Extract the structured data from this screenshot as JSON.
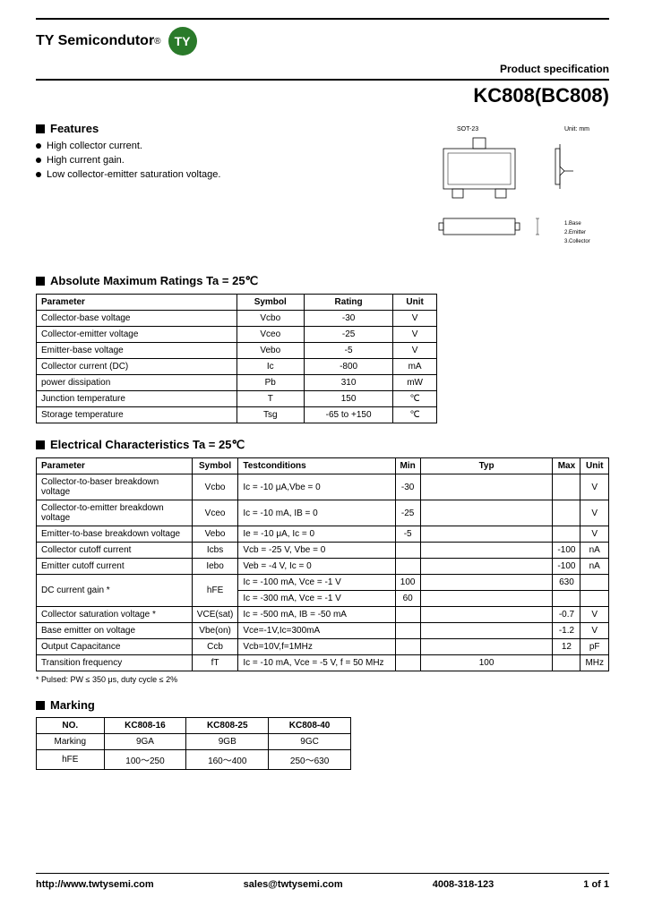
{
  "header": {
    "company": "TY Semicondutor",
    "logo_text": "TY",
    "logo_bg": "#2a7a2a",
    "product_spec": "Product specification",
    "part_number": "KC808(BC808)"
  },
  "features": {
    "title": "Features",
    "items": [
      "High collector current.",
      "High current gain.",
      "Low collector-emitter saturation voltage."
    ]
  },
  "diagram": {
    "label_top": "SOT-23",
    "label_right": "Unit: mm",
    "pin1": "1.Base",
    "pin2": "2.Emitter",
    "pin3": "3.Collector"
  },
  "abs_max": {
    "title": "Absolute Maximum Ratings Ta = 25℃",
    "columns": [
      "Parameter",
      "Symbol",
      "Rating",
      "Unit"
    ],
    "rows": [
      [
        "Collector-base voltage",
        "Vcbo",
        "-30",
        "V"
      ],
      [
        "Collector-emitter voltage",
        "Vceo",
        "-25",
        "V"
      ],
      [
        "Emitter-base voltage",
        "Vebo",
        "-5",
        "V"
      ],
      [
        "Collector current (DC)",
        "Ic",
        "-800",
        "mA"
      ],
      [
        "power dissipation",
        "Pb",
        "310",
        "mW"
      ],
      [
        "Junction temperature",
        "T",
        "150",
        "℃"
      ],
      [
        "Storage temperature",
        "Tsg",
        "-65 to +150",
        "℃"
      ]
    ]
  },
  "elec_char": {
    "title": "Electrical Characteristics Ta = 25℃",
    "columns": [
      "Parameter",
      "Symbol",
      "Testconditions",
      "Min",
      "Typ",
      "Max",
      "Unit"
    ],
    "rows": [
      [
        "Collector-to-baser breakdown voltage",
        "Vcbo",
        "Ic = -10 μA,Vbe = 0",
        "-30",
        "",
        "",
        "V"
      ],
      [
        "Collector-to-emitter breakdown voltage",
        "Vceo",
        "Ic = -10 mA, IB = 0",
        "-25",
        "",
        "",
        "V"
      ],
      [
        "Emitter-to-base breakdown voltage",
        "Vebo",
        "Ie = -10 μA, Ic = 0",
        "-5",
        "",
        "",
        "V"
      ],
      [
        "Collector cutoff current",
        "Icbs",
        "Vcb = -25 V, Vbe = 0",
        "",
        "",
        "-100",
        "nA"
      ],
      [
        "Emitter cutoff current",
        "Iebo",
        "Veb = -4 V, Ic = 0",
        "",
        "",
        "-100",
        "nA"
      ],
      [
        "DC current gain *",
        "hFE",
        "Ic = -100 mA, Vce = -1 V",
        "100",
        "",
        "630",
        ""
      ],
      [
        "",
        "",
        "Ic = -300 mA, Vce = -1 V",
        "60",
        "",
        "",
        ""
      ],
      [
        "Collector saturation voltage *",
        "VCE(sat)",
        "Ic = -500 mA, IB = -50 mA",
        "",
        "",
        "-0.7",
        "V"
      ],
      [
        "Base emitter on voltage",
        "Vbe(on)",
        "Vce=-1V,Ic=300mA",
        "",
        "",
        "-1.2",
        "V"
      ],
      [
        "Output Capacitance",
        "Ccb",
        "Vcb=10V,f=1MHz",
        "",
        "",
        "12",
        "pF"
      ],
      [
        "Transition frequency",
        "fT",
        "Ic = -10 mA, Vce = -5 V, f = 50 MHz",
        "",
        "100",
        "",
        "MHz"
      ]
    ],
    "note": "* Pulsed: PW ≤ 350 μs, duty cycle ≤ 2%"
  },
  "marking": {
    "title": "Marking",
    "columns": [
      "NO.",
      "KC808-16",
      "KC808-25",
      "KC808-40"
    ],
    "rows": [
      [
        "Marking",
        "9GA",
        "9GB",
        "9GC"
      ],
      [
        "hFE",
        "100～250",
        "160～400",
        "250～630"
      ]
    ]
  },
  "footer": {
    "url": "http://www.twtysemi.com",
    "email": "sales@twtysemi.com",
    "phone": "4008-318-123",
    "page": "1 of 1"
  }
}
